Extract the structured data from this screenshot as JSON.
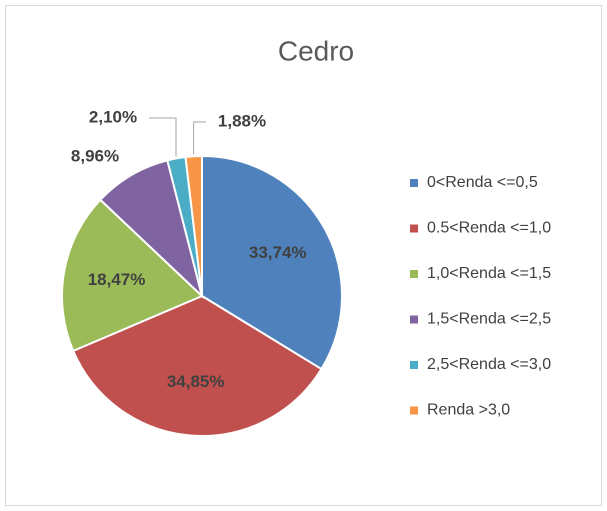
{
  "chart_data": {
    "type": "pie",
    "title": "Cedro",
    "categories": [
      "0<Renda <=0,5",
      "0.5<Renda <=1,0",
      "1,0<Renda <=1,5",
      "1,5<Renda <=2,5",
      "2,5<Renda <=3,0",
      "Renda >3,0"
    ],
    "values": [
      33.74,
      34.85,
      18.47,
      8.96,
      2.1,
      1.88
    ],
    "value_labels": [
      "33,74%",
      "34,85%",
      "18,47%",
      "8,96%",
      "2,10%",
      "1,88%"
    ],
    "colors": [
      "#4f81bd",
      "#c0504d",
      "#9bbb59",
      "#8064a2",
      "#4bacc6",
      "#f79646"
    ],
    "legend": "right"
  }
}
